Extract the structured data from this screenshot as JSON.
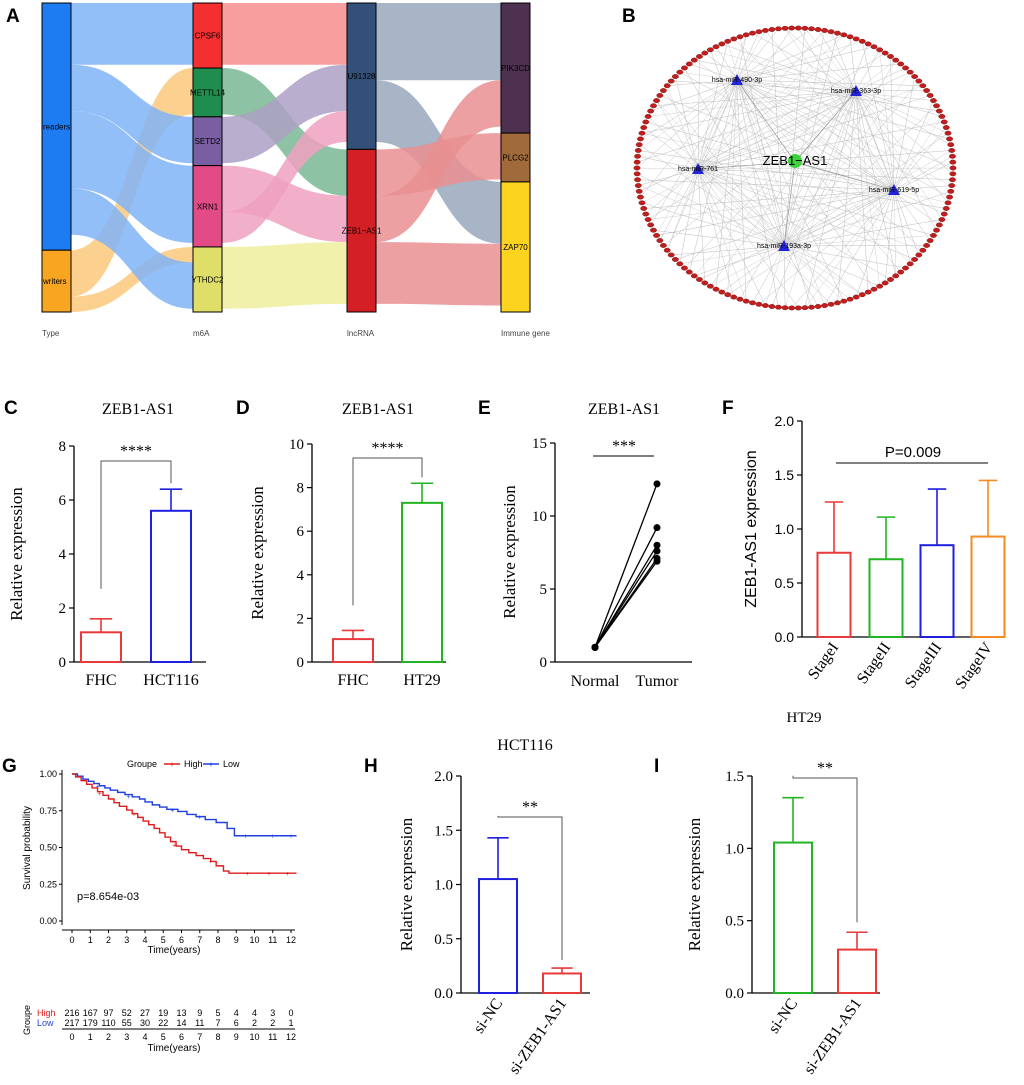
{
  "panel_labels": [
    "A",
    "B",
    "C",
    "D",
    "E",
    "F",
    "G",
    "H",
    "I"
  ],
  "sankey": {
    "columns": [
      "Type",
      "m6A",
      "lncRNA",
      "Immune gene"
    ],
    "type_nodes": [
      {
        "name": "readers",
        "weight": 4,
        "color": "#1e7cf2"
      },
      {
        "name": "writers",
        "weight": 1,
        "color": "#f8a521"
      }
    ],
    "m6a_nodes": [
      {
        "name": "CPSF6",
        "weight": 1,
        "color": "#f42f2f"
      },
      {
        "name": "METTL14",
        "weight": 0.75,
        "color": "#1f8d4e"
      },
      {
        "name": "SETD2",
        "weight": 0.75,
        "color": "#7a5ea2"
      },
      {
        "name": "XRN1",
        "weight": 1.25,
        "color": "#e24b85"
      },
      {
        "name": "YTHDC2",
        "weight": 1,
        "color": "#dede69"
      }
    ],
    "lncrna_nodes": [
      {
        "name": "U91328",
        "weight": 2.25,
        "color": "#33507a"
      },
      {
        "name": "ZEB1−AS1",
        "weight": 2.5,
        "color": "#d42025"
      }
    ],
    "gene_nodes": [
      {
        "name": "PIK3CD",
        "weight": 2,
        "color": "#4e3050"
      },
      {
        "name": "PLCG2",
        "weight": 0.75,
        "color": "#a06a3a"
      },
      {
        "name": "ZAP70",
        "weight": 2,
        "color": "#fcd31f"
      }
    ]
  },
  "network": {
    "center": "ZEB1−AS1",
    "mirnas": [
      "hsa-miR-490-3p",
      "hsa-miR-363-3p",
      "hsa-miR-761",
      "hsa-miR-619-5p",
      "hsa-miR-193a-3p"
    ],
    "outer_gene_count": 150
  },
  "chart_data": [
    {
      "panel": "C",
      "type": "bar",
      "title": "ZEB1-AS1",
      "categories": [
        "FHC",
        "HCT116"
      ],
      "values": [
        1.1,
        5.6
      ],
      "errors": [
        0.5,
        0.8
      ],
      "colors": [
        "#e8393b",
        "#1f1fe0"
      ],
      "ylabel": "Relative expression",
      "ylim": [
        0,
        8
      ],
      "yticks": [
        0,
        2,
        4,
        6,
        8
      ],
      "significance": "****"
    },
    {
      "panel": "D",
      "type": "bar",
      "title": "ZEB1-AS1",
      "categories": [
        "FHC",
        "HT29"
      ],
      "values": [
        1.05,
        7.3
      ],
      "errors": [
        0.4,
        0.9
      ],
      "colors": [
        "#e8393b",
        "#22b422"
      ],
      "ylabel": "Relative expression",
      "ylim": [
        0,
        10
      ],
      "yticks": [
        0,
        2,
        4,
        6,
        8,
        10
      ],
      "significance": "****"
    },
    {
      "panel": "E",
      "type": "line",
      "title": "ZEB1-AS1",
      "categories": [
        "Normal",
        "Tumor"
      ],
      "pairs": [
        [
          1,
          12.2
        ],
        [
          1,
          9.2
        ],
        [
          1,
          8
        ],
        [
          1,
          7.6
        ],
        [
          1,
          7.1
        ],
        [
          1,
          6.9
        ]
      ],
      "ylabel": "Relative expression",
      "ylim": [
        0,
        15
      ],
      "yticks": [
        0,
        5,
        10,
        15
      ],
      "significance": "***"
    },
    {
      "panel": "F",
      "type": "bar",
      "categories": [
        "StageI",
        "StageII",
        "StageIII",
        "StageIV"
      ],
      "values": [
        0.78,
        0.72,
        0.85,
        0.93
      ],
      "errors": [
        0.47,
        0.39,
        0.52,
        0.52
      ],
      "colors": [
        "#e8393b",
        "#22b422",
        "#1f1fe0",
        "#f58a22"
      ],
      "ylabel": "ZEB1-AS1 expression",
      "ylim": [
        0,
        2.0
      ],
      "yticks": [
        "0.0",
        "0.5",
        "1.0",
        "1.5",
        "2.0"
      ],
      "annotation": "P=0.009"
    },
    {
      "panel": "G",
      "type": "line",
      "legend_title": "Groupe",
      "series": [
        {
          "name": "High",
          "color": "#e01b1b"
        },
        {
          "name": "Low",
          "color": "#1f3fe0"
        }
      ],
      "xlabel": "Time(years)",
      "ylabel": "Survival probability",
      "xticks": [
        "0",
        "1",
        "2",
        "3",
        "4",
        "5",
        "6",
        "7",
        "8",
        "9",
        "10",
        "11",
        "12"
      ],
      "yticks": [
        "0.00",
        "0.25",
        "0.50",
        "0.75",
        "1.00"
      ],
      "pvalue": "p=8.654e-03",
      "risk_table": {
        "ylabel": "Groupe",
        "xlabel": "Time(years)",
        "High": [
          "216",
          "167",
          "97",
          "52",
          "27",
          "19",
          "13",
          "9",
          "5",
          "4",
          "4",
          "3",
          "0"
        ],
        "Low": [
          "217",
          "179",
          "110",
          "55",
          "30",
          "22",
          "14",
          "11",
          "7",
          "6",
          "2",
          "2",
          "1"
        ]
      }
    },
    {
      "panel": "H",
      "type": "bar",
      "title": "HCT116",
      "categories": [
        "si-NC",
        "si-ZEB1-AS1"
      ],
      "values": [
        1.05,
        0.18
      ],
      "errors": [
        0.38,
        0.05
      ],
      "colors": [
        "#1f1fe0",
        "#e8393b"
      ],
      "ylabel": "Relative expression",
      "ylim": [
        0,
        2.0
      ],
      "yticks": [
        "0.0",
        "0.5",
        "1.0",
        "1.5",
        "2.0"
      ],
      "significance": "**"
    },
    {
      "panel": "I",
      "type": "bar",
      "title": "HT29",
      "categories": [
        "si-NC",
        "si-ZEB1-AS1"
      ],
      "values": [
        1.04,
        0.3
      ],
      "errors": [
        0.31,
        0.12
      ],
      "colors": [
        "#22b422",
        "#e8393b"
      ],
      "ylabel": "Relative expression",
      "ylim": [
        0,
        1.5
      ],
      "yticks": [
        "0.0",
        "0.5",
        "1.0",
        "1.5"
      ],
      "significance": "**"
    }
  ]
}
